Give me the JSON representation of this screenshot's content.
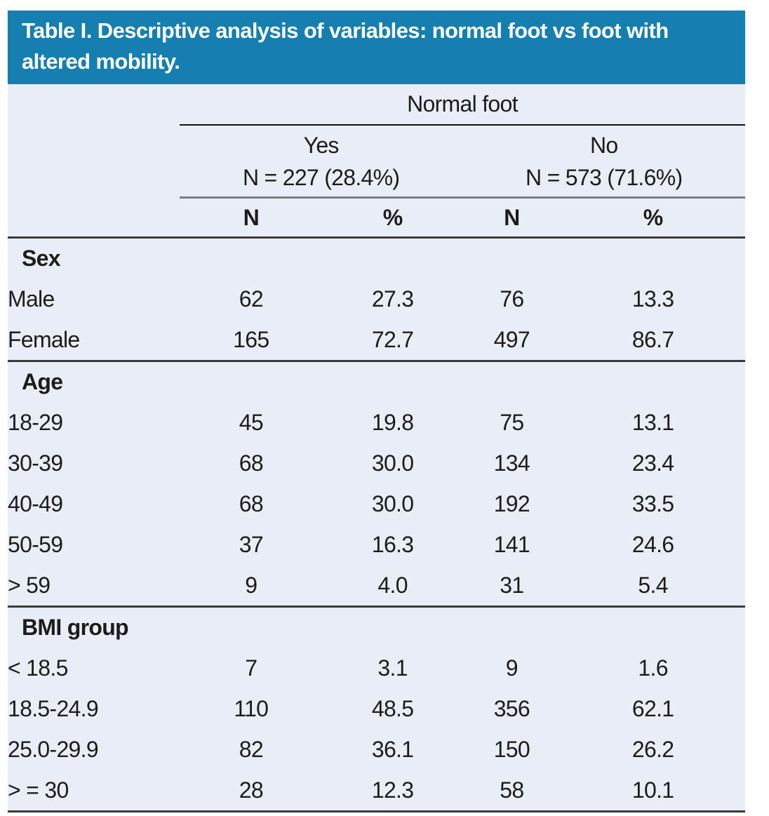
{
  "title": "Table I. Descriptive analysis of variables: normal foot vs foot with altered mobility.",
  "colors": {
    "title_bar_background": "#1580b0",
    "title_text": "#ffffff",
    "table_background": "#e9edf5",
    "body_text": "#1c1c1c",
    "heavy_rule": "#3a3a3a",
    "subgroup_rule": "#7d7d7d",
    "group_rule": "#101010"
  },
  "table": {
    "group_header": "Normal foot",
    "subgroups": [
      {
        "label": "Yes",
        "n_label": "N = 227 (28.4%)"
      },
      {
        "label": "No",
        "n_label": "N = 573 (71.6%)"
      }
    ],
    "col_headers": [
      "N",
      "%",
      "N",
      "%"
    ],
    "sections": [
      {
        "name": "Sex",
        "rows": [
          {
            "label": "Male",
            "values": [
              "62",
              "27.3",
              "76",
              "13.3"
            ]
          },
          {
            "label": "Female",
            "values": [
              "165",
              "72.7",
              "497",
              "86.7"
            ]
          }
        ]
      },
      {
        "name": "Age",
        "rows": [
          {
            "label": "18-29",
            "values": [
              "45",
              "19.8",
              "75",
              "13.1"
            ]
          },
          {
            "label": "30-39",
            "values": [
              "68",
              "30.0",
              "134",
              "23.4"
            ]
          },
          {
            "label": "40-49",
            "values": [
              "68",
              "30.0",
              "192",
              "33.5"
            ]
          },
          {
            "label": "50-59",
            "values": [
              "37",
              "16.3",
              "141",
              "24.6"
            ]
          },
          {
            "label": "> 59",
            "values": [
              "9",
              "4.0",
              "31",
              "5.4"
            ]
          }
        ]
      },
      {
        "name": "BMI group",
        "rows": [
          {
            "label": "< 18.5",
            "values": [
              "7",
              "3.1",
              "9",
              "1.6"
            ]
          },
          {
            "label": "18.5-24.9",
            "values": [
              "110",
              "48.5",
              "356",
              "62.1"
            ]
          },
          {
            "label": "25.0-29.9",
            "values": [
              "82",
              "36.1",
              "150",
              "26.2"
            ]
          },
          {
            "label": "> = 30",
            "values": [
              "28",
              "12.3",
              "58",
              "10.1"
            ]
          }
        ]
      }
    ]
  }
}
